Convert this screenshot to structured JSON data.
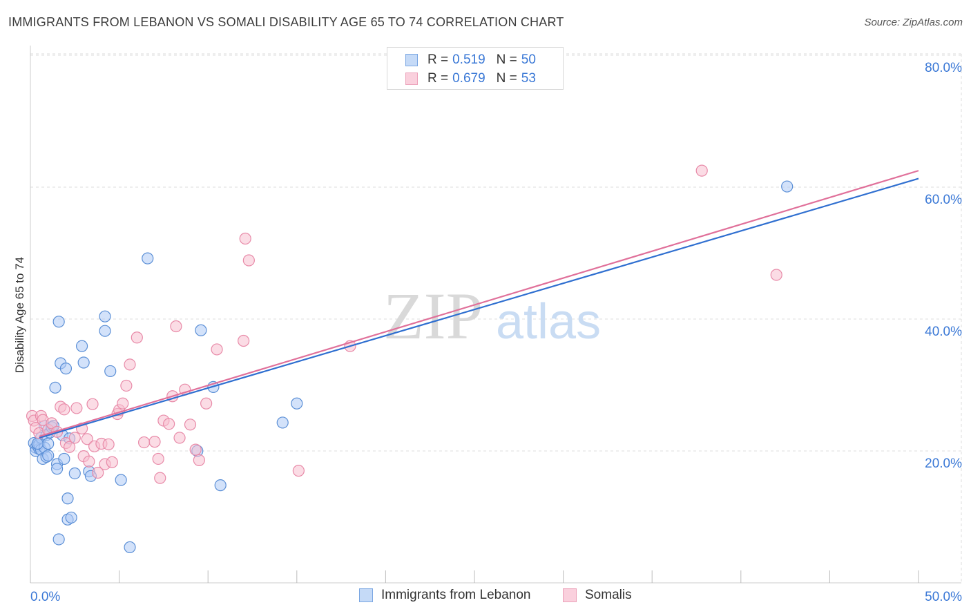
{
  "title": "IMMIGRANTS FROM LEBANON VS SOMALI DISABILITY AGE 65 TO 74 CORRELATION CHART",
  "source": "Source: ZipAtlas.com",
  "watermark": {
    "zip": "ZIP",
    "atlas": "atlas"
  },
  "colors": {
    "blue_fill": "#aecbf5",
    "blue_stroke": "#5b8fd6",
    "blue_line": "#2f6fd0",
    "pink_fill": "#f7bfd0",
    "pink_stroke": "#e88aa8",
    "pink_line": "#e0709a",
    "grid": "#dddddd",
    "tick_text": "#3a78d6"
  },
  "legend": {
    "rows": [
      {
        "r_label": "R =",
        "r_value": "0.519",
        "n_label": "N =",
        "n_value": "50"
      },
      {
        "r_label": "R =",
        "r_value": "0.679",
        "n_label": "N =",
        "n_value": "53"
      }
    ]
  },
  "chart_data": {
    "type": "scatter",
    "title": "IMMIGRANTS FROM LEBANON VS SOMALI DISABILITY AGE 65 TO 74 CORRELATION CHART",
    "xlabel": "",
    "ylabel": "Disability Age 65 to 74",
    "xlim": [
      0,
      50
    ],
    "ylim": [
      0,
      85
    ],
    "x_tick_labels": [
      "0.0%",
      "50.0%"
    ],
    "y_ticks": [
      20,
      40,
      60,
      80
    ],
    "y_tick_labels": [
      "20.0%",
      "40.0%",
      "60.0%",
      "80.0%"
    ],
    "grid": true,
    "legend_position": "top-center",
    "series": [
      {
        "name": "Immigrants from Lebanon",
        "color": "#aecbf5",
        "trend": {
          "x": [
            0.5,
            50
          ],
          "y": [
            22.0,
            61.3
          ]
        },
        "points": [
          [
            0.2,
            21.2
          ],
          [
            0.3,
            20.5
          ],
          [
            0.3,
            20.0
          ],
          [
            0.4,
            20.8
          ],
          [
            0.5,
            20.3
          ],
          [
            0.5,
            21.0
          ],
          [
            0.6,
            22.0
          ],
          [
            0.6,
            20.2
          ],
          [
            0.7,
            18.8
          ],
          [
            0.8,
            20.5
          ],
          [
            0.8,
            23.8
          ],
          [
            0.9,
            19.1
          ],
          [
            0.9,
            22.4
          ],
          [
            1.0,
            19.3
          ],
          [
            1.0,
            21.1
          ],
          [
            1.1,
            22.8
          ],
          [
            1.2,
            23.6
          ],
          [
            1.3,
            23.8
          ],
          [
            1.4,
            29.6
          ],
          [
            1.5,
            18.0
          ],
          [
            1.5,
            17.3
          ],
          [
            1.6,
            39.6
          ],
          [
            1.7,
            33.3
          ],
          [
            1.8,
            22.4
          ],
          [
            1.9,
            18.8
          ],
          [
            2.0,
            32.5
          ],
          [
            2.1,
            12.8
          ],
          [
            2.1,
            9.6
          ],
          [
            2.3,
            9.9
          ],
          [
            2.2,
            21.9
          ],
          [
            2.5,
            16.6
          ],
          [
            2.9,
            35.9
          ],
          [
            3.0,
            33.4
          ],
          [
            3.3,
            16.9
          ],
          [
            3.4,
            16.2
          ],
          [
            4.2,
            40.4
          ],
          [
            4.2,
            38.2
          ],
          [
            4.5,
            32.1
          ],
          [
            5.1,
            15.6
          ],
          [
            1.6,
            6.6
          ],
          [
            5.6,
            5.4
          ],
          [
            6.6,
            49.2
          ],
          [
            9.4,
            20.0
          ],
          [
            9.6,
            38.3
          ],
          [
            10.3,
            29.7
          ],
          [
            10.7,
            14.8
          ],
          [
            14.2,
            24.3
          ],
          [
            15.0,
            27.2
          ],
          [
            42.6,
            60.1
          ],
          [
            0.4,
            21.1
          ]
        ]
      },
      {
        "name": "Somalis",
        "color": "#f7bfd0",
        "trend": {
          "x": [
            0.5,
            50
          ],
          "y": [
            22.2,
            62.5
          ]
        },
        "points": [
          [
            0.1,
            25.3
          ],
          [
            0.2,
            24.6
          ],
          [
            0.3,
            23.5
          ],
          [
            0.5,
            22.7
          ],
          [
            0.6,
            25.3
          ],
          [
            0.7,
            24.7
          ],
          [
            1.0,
            23.2
          ],
          [
            1.2,
            24.2
          ],
          [
            1.5,
            22.9
          ],
          [
            1.7,
            26.7
          ],
          [
            1.9,
            26.3
          ],
          [
            2.0,
            21.2
          ],
          [
            2.2,
            20.6
          ],
          [
            2.5,
            22.0
          ],
          [
            2.6,
            26.5
          ],
          [
            2.9,
            23.4
          ],
          [
            3.0,
            19.2
          ],
          [
            3.2,
            21.8
          ],
          [
            3.3,
            18.4
          ],
          [
            3.5,
            27.1
          ],
          [
            3.6,
            20.7
          ],
          [
            3.8,
            16.7
          ],
          [
            4.0,
            21.1
          ],
          [
            4.2,
            18.0
          ],
          [
            4.4,
            21.0
          ],
          [
            4.6,
            18.3
          ],
          [
            4.9,
            25.6
          ],
          [
            5.0,
            26.2
          ],
          [
            5.2,
            27.2
          ],
          [
            5.4,
            29.9
          ],
          [
            5.6,
            33.1
          ],
          [
            6.0,
            37.2
          ],
          [
            6.4,
            21.3
          ],
          [
            7.0,
            21.4
          ],
          [
            7.2,
            18.8
          ],
          [
            7.3,
            15.9
          ],
          [
            7.5,
            24.6
          ],
          [
            7.8,
            24.1
          ],
          [
            8.0,
            28.3
          ],
          [
            8.2,
            38.9
          ],
          [
            8.4,
            22.0
          ],
          [
            8.7,
            29.3
          ],
          [
            9.0,
            24.0
          ],
          [
            9.3,
            20.2
          ],
          [
            9.5,
            18.6
          ],
          [
            9.9,
            27.2
          ],
          [
            10.5,
            35.4
          ],
          [
            12.0,
            36.7
          ],
          [
            12.1,
            52.2
          ],
          [
            12.3,
            48.9
          ],
          [
            15.1,
            17.0
          ],
          [
            18.0,
            35.9
          ],
          [
            37.8,
            62.5
          ]
        ]
      }
    ]
  },
  "extra_points": {
    "somali_high": [
      42.0,
      46.7
    ]
  }
}
